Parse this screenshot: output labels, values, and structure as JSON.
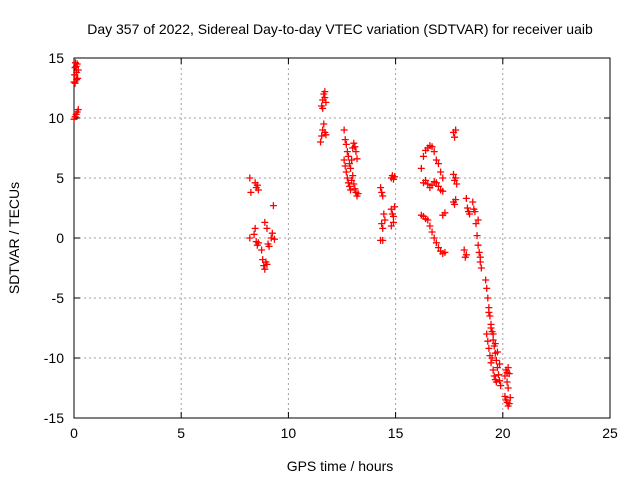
{
  "chart_data": {
    "type": "scatter",
    "title": "Day 357 of 2022, Sidereal Day-to-day VTEC variation (SDTVAR) for receiver uaib",
    "xlabel": "GPS time / hours",
    "ylabel": "SDTVAR / TECUs",
    "xlim": [
      0,
      25
    ],
    "ylim": [
      -15,
      15
    ],
    "xticks": [
      0,
      5,
      10,
      15,
      20,
      25
    ],
    "yticks": [
      -15,
      -10,
      -5,
      0,
      5,
      10,
      15
    ],
    "grid": true,
    "marker": "+",
    "series": [
      {
        "name": "SDTVAR",
        "color": "#ff0000",
        "points": [
          [
            0.0,
            13.0
          ],
          [
            0.03,
            13.6
          ],
          [
            0.05,
            14.2
          ],
          [
            0.07,
            14.6
          ],
          [
            0.1,
            14.3
          ],
          [
            0.12,
            13.8
          ],
          [
            0.15,
            14.5
          ],
          [
            0.17,
            13.3
          ],
          [
            0.2,
            14.0
          ],
          [
            0.05,
            12.9
          ],
          [
            0.12,
            13.2
          ],
          [
            0.0,
            9.9
          ],
          [
            0.05,
            10.1
          ],
          [
            0.1,
            10.3
          ],
          [
            0.15,
            10.5
          ],
          [
            0.2,
            10.7
          ],
          [
            8.2,
            5.0
          ],
          [
            8.25,
            3.8
          ],
          [
            8.2,
            0.0
          ],
          [
            8.45,
            4.6
          ],
          [
            8.5,
            4.2
          ],
          [
            8.55,
            4.4
          ],
          [
            8.6,
            4.0
          ],
          [
            8.4,
            0.3
          ],
          [
            8.45,
            0.8
          ],
          [
            8.5,
            -0.3
          ],
          [
            8.55,
            -0.6
          ],
          [
            8.6,
            -0.4
          ],
          [
            8.75,
            -1.0
          ],
          [
            8.8,
            -1.8
          ],
          [
            8.85,
            -2.3
          ],
          [
            8.9,
            -2.6
          ],
          [
            8.95,
            -2.0
          ],
          [
            9.0,
            -2.2
          ],
          [
            9.05,
            -0.5
          ],
          [
            9.1,
            -0.7
          ],
          [
            8.9,
            1.3
          ],
          [
            9.0,
            0.8
          ],
          [
            9.2,
            0.0
          ],
          [
            9.25,
            0.4
          ],
          [
            9.3,
            2.7
          ],
          [
            9.35,
            -0.1
          ],
          [
            11.5,
            8.0
          ],
          [
            11.55,
            8.5
          ],
          [
            11.6,
            9.0
          ],
          [
            11.65,
            9.5
          ],
          [
            11.7,
            8.8
          ],
          [
            11.75,
            8.6
          ],
          [
            11.55,
            11.0
          ],
          [
            11.6,
            11.5
          ],
          [
            11.65,
            12.0
          ],
          [
            11.7,
            11.7
          ],
          [
            11.75,
            11.3
          ],
          [
            11.6,
            10.8
          ],
          [
            11.7,
            12.2
          ],
          [
            12.6,
            9.0
          ],
          [
            12.65,
            8.2
          ],
          [
            12.7,
            7.8
          ],
          [
            12.75,
            7.2
          ],
          [
            12.8,
            6.8
          ],
          [
            12.85,
            6.2
          ],
          [
            12.9,
            5.8
          ],
          [
            12.95,
            6.5
          ],
          [
            13.0,
            7.5
          ],
          [
            13.05,
            7.9
          ],
          [
            13.1,
            7.6
          ],
          [
            13.15,
            7.2
          ],
          [
            13.2,
            6.6
          ],
          [
            12.6,
            6.5
          ],
          [
            12.65,
            6.0
          ],
          [
            12.7,
            5.5
          ],
          [
            12.75,
            5.0
          ],
          [
            12.8,
            4.6
          ],
          [
            12.85,
            4.3
          ],
          [
            12.9,
            4.0
          ],
          [
            12.95,
            4.8
          ],
          [
            13.0,
            5.2
          ],
          [
            13.05,
            4.5
          ],
          [
            13.1,
            4.1
          ],
          [
            13.15,
            3.8
          ],
          [
            13.2,
            3.5
          ],
          [
            13.25,
            3.7
          ],
          [
            14.3,
            4.2
          ],
          [
            14.35,
            3.8
          ],
          [
            14.4,
            3.5
          ],
          [
            14.45,
            2.0
          ],
          [
            14.5,
            1.5
          ],
          [
            14.35,
            1.2
          ],
          [
            14.4,
            0.8
          ],
          [
            14.3,
            -0.2
          ],
          [
            14.4,
            -0.2
          ],
          [
            14.8,
            5.0
          ],
          [
            14.85,
            5.2
          ],
          [
            14.9,
            4.9
          ],
          [
            14.95,
            5.1
          ],
          [
            14.8,
            2.4
          ],
          [
            14.85,
            2.0
          ],
          [
            14.9,
            1.8
          ],
          [
            14.95,
            2.6
          ],
          [
            14.8,
            1.0
          ],
          [
            14.9,
            1.3
          ],
          [
            16.2,
            5.8
          ],
          [
            16.3,
            6.8
          ],
          [
            16.4,
            7.3
          ],
          [
            16.5,
            7.5
          ],
          [
            16.6,
            7.7
          ],
          [
            16.7,
            7.6
          ],
          [
            16.8,
            7.2
          ],
          [
            16.9,
            6.5
          ],
          [
            17.0,
            6.2
          ],
          [
            17.1,
            5.5
          ],
          [
            17.2,
            5.0
          ],
          [
            16.3,
            4.6
          ],
          [
            16.4,
            4.8
          ],
          [
            16.5,
            4.5
          ],
          [
            16.6,
            4.2
          ],
          [
            16.7,
            4.4
          ],
          [
            16.8,
            4.7
          ],
          [
            16.9,
            4.6
          ],
          [
            17.0,
            4.3
          ],
          [
            17.1,
            4.0
          ],
          [
            17.2,
            3.9
          ],
          [
            16.2,
            1.9
          ],
          [
            16.3,
            1.8
          ],
          [
            16.4,
            1.6
          ],
          [
            16.5,
            1.5
          ],
          [
            16.6,
            1.0
          ],
          [
            16.7,
            0.5
          ],
          [
            16.8,
            0.0
          ],
          [
            16.9,
            -0.4
          ],
          [
            17.0,
            -0.8
          ],
          [
            17.1,
            -1.1
          ],
          [
            17.2,
            -1.3
          ],
          [
            17.3,
            -1.2
          ],
          [
            17.2,
            1.9
          ],
          [
            17.3,
            2.1
          ],
          [
            17.7,
            8.8
          ],
          [
            17.75,
            8.4
          ],
          [
            17.8,
            9.0
          ],
          [
            17.7,
            5.3
          ],
          [
            17.75,
            4.8
          ],
          [
            17.8,
            5.0
          ],
          [
            17.85,
            4.5
          ],
          [
            17.7,
            3.0
          ],
          [
            17.75,
            2.8
          ],
          [
            17.8,
            3.2
          ],
          [
            18.2,
            -1.0
          ],
          [
            18.3,
            -1.4
          ],
          [
            18.25,
            -1.6
          ],
          [
            18.3,
            3.3
          ],
          [
            18.35,
            2.5
          ],
          [
            18.4,
            2.2
          ],
          [
            18.45,
            2.0
          ],
          [
            18.6,
            3.0
          ],
          [
            18.65,
            2.4
          ],
          [
            18.7,
            2.2
          ],
          [
            18.75,
            1.2
          ],
          [
            18.8,
            0.2
          ],
          [
            18.85,
            -0.6
          ],
          [
            18.9,
            -1.2
          ],
          [
            18.95,
            -2.0
          ],
          [
            19.0,
            -2.5
          ],
          [
            18.95,
            -1.6
          ],
          [
            18.85,
            1.5
          ],
          [
            19.2,
            -3.5
          ],
          [
            19.25,
            -4.2
          ],
          [
            19.3,
            -5.0
          ],
          [
            19.35,
            -5.8
          ],
          [
            19.4,
            -6.5
          ],
          [
            19.45,
            -7.2
          ],
          [
            19.5,
            -7.8
          ],
          [
            19.55,
            -8.5
          ],
          [
            19.6,
            -9.0
          ],
          [
            19.65,
            -9.6
          ],
          [
            19.7,
            -10.2
          ],
          [
            19.75,
            -10.8
          ],
          [
            19.8,
            -11.4
          ],
          [
            19.85,
            -11.9
          ],
          [
            19.9,
            -12.3
          ],
          [
            19.25,
            -8.0
          ],
          [
            19.3,
            -8.6
          ],
          [
            19.35,
            -9.2
          ],
          [
            19.4,
            -9.8
          ],
          [
            19.45,
            -10.4
          ],
          [
            19.5,
            -10.0
          ],
          [
            19.55,
            -11.0
          ],
          [
            19.6,
            -11.5
          ],
          [
            19.65,
            -11.8
          ],
          [
            19.7,
            -12.0
          ],
          [
            19.35,
            -6.2
          ],
          [
            19.45,
            -7.5
          ],
          [
            19.55,
            -8.0
          ],
          [
            19.65,
            -8.8
          ],
          [
            19.75,
            -9.5
          ],
          [
            19.85,
            -10.5
          ],
          [
            20.1,
            -11.5
          ],
          [
            20.15,
            -11.0
          ],
          [
            20.2,
            -11.2
          ],
          [
            20.25,
            -10.8
          ],
          [
            20.3,
            -11.3
          ],
          [
            20.2,
            -12.0
          ],
          [
            20.25,
            -12.5
          ],
          [
            20.1,
            -13.2
          ],
          [
            20.15,
            -13.5
          ],
          [
            20.2,
            -13.7
          ],
          [
            20.25,
            -14.0
          ],
          [
            20.3,
            -13.8
          ],
          [
            20.35,
            -13.3
          ]
        ]
      }
    ]
  }
}
